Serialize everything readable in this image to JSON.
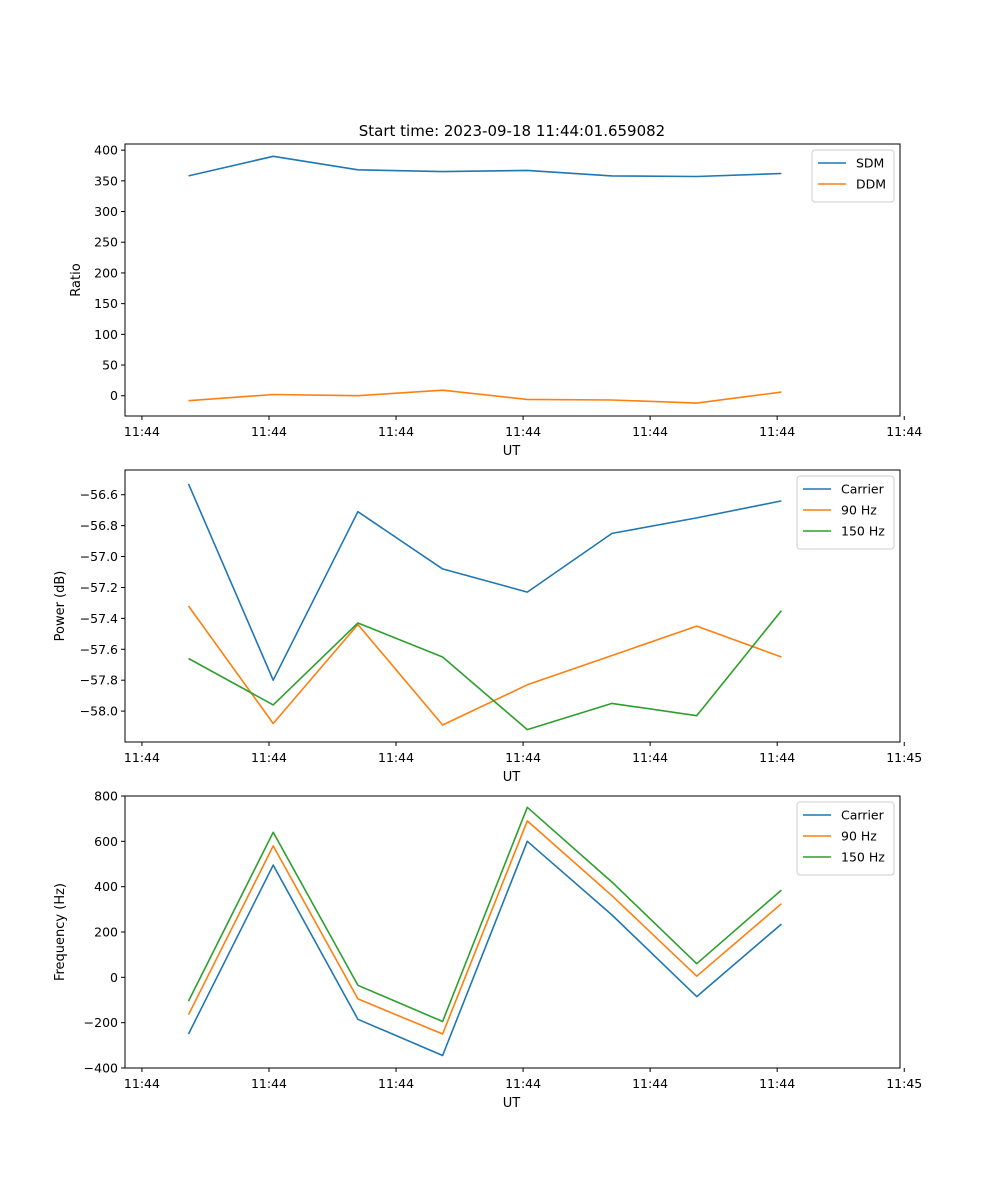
{
  "title": "Start time: 2023-09-18 11:44:01.659082",
  "chart_data": [
    {
      "type": "line",
      "xlabel": "UT",
      "ylabel": "Ratio",
      "x": [
        1,
        2,
        3,
        4,
        5,
        6,
        7,
        8
      ],
      "xlim": [
        0.25,
        9.4
      ],
      "xticks": [
        0.45,
        1.95,
        3.45,
        4.95,
        6.45,
        7.95,
        9.45
      ],
      "xtick_labels": [
        "11:44",
        "11:44",
        "11:44",
        "11:44",
        "11:44",
        "11:44",
        "11:44"
      ],
      "ylim": [
        -33,
        410
      ],
      "yticks": [
        0,
        50,
        100,
        150,
        200,
        250,
        300,
        350,
        400
      ],
      "ytick_labels": [
        "0",
        "50",
        "100",
        "150",
        "200",
        "250",
        "300",
        "350",
        "400"
      ],
      "legend": "top-right",
      "series": [
        {
          "name": "SDM",
          "color": "#1f77b4",
          "values": [
            358,
            390,
            368,
            365,
            367,
            358,
            357,
            362
          ]
        },
        {
          "name": "DDM",
          "color": "#ff7f0e",
          "values": [
            -8,
            2,
            0,
            9,
            -6,
            -7,
            -12,
            6
          ]
        }
      ]
    },
    {
      "type": "line",
      "xlabel": "UT",
      "ylabel": "Power (dB)",
      "x": [
        1,
        2,
        3,
        4,
        5,
        6,
        7,
        8
      ],
      "xlim": [
        0.25,
        9.4
      ],
      "xticks": [
        0.45,
        1.95,
        3.45,
        4.95,
        6.45,
        7.95,
        9.45
      ],
      "xtick_labels": [
        "11:44",
        "11:44",
        "11:44",
        "11:44",
        "11:44",
        "11:44",
        "11:45"
      ],
      "ylim": [
        -58.2,
        -56.44
      ],
      "yticks": [
        -58.0,
        -57.8,
        -57.6,
        -57.4,
        -57.2,
        -57.0,
        -56.8,
        -56.6
      ],
      "ytick_labels": [
        "−58.0",
        "−57.8",
        "−57.6",
        "−57.4",
        "−57.2",
        "−57.0",
        "−56.8",
        "−56.6"
      ],
      "legend": "top-right",
      "series": [
        {
          "name": "Carrier",
          "color": "#1f77b4",
          "values": [
            -56.53,
            -57.8,
            -56.71,
            -57.08,
            -57.23,
            -56.85,
            -56.75,
            -56.64
          ]
        },
        {
          "name": "90 Hz",
          "color": "#ff7f0e",
          "values": [
            -57.32,
            -58.08,
            -57.44,
            -58.09,
            -57.83,
            -57.64,
            -57.45,
            -57.65
          ]
        },
        {
          "name": "150 Hz",
          "color": "#2ca02c",
          "values": [
            -57.66,
            -57.96,
            -57.43,
            -57.65,
            -58.12,
            -57.95,
            -58.03,
            -57.35
          ]
        }
      ]
    },
    {
      "type": "line",
      "xlabel": "UT",
      "ylabel": "Frequency (Hz)",
      "x": [
        1,
        2,
        3,
        4,
        5,
        6,
        7,
        8
      ],
      "xlim": [
        0.25,
        9.4
      ],
      "xticks": [
        0.45,
        1.95,
        3.45,
        4.95,
        6.45,
        7.95,
        9.45
      ],
      "xtick_labels": [
        "11:44",
        "11:44",
        "11:44",
        "11:44",
        "11:44",
        "11:44",
        "11:45"
      ],
      "ylim": [
        -400,
        800
      ],
      "yticks": [
        -400,
        -200,
        0,
        200,
        400,
        600,
        800
      ],
      "ytick_labels": [
        "−400",
        "−200",
        "0",
        "200",
        "400",
        "600",
        "800"
      ],
      "legend": "top-right",
      "series": [
        {
          "name": "Carrier",
          "color": "#1f77b4",
          "values": [
            -250,
            495,
            -185,
            -345,
            600,
            275,
            -85,
            235
          ]
        },
        {
          "name": "90 Hz",
          "color": "#ff7f0e",
          "values": [
            -165,
            580,
            -95,
            -250,
            690,
            360,
            5,
            325
          ]
        },
        {
          "name": "150 Hz",
          "color": "#2ca02c",
          "values": [
            -105,
            640,
            -35,
            -195,
            750,
            420,
            60,
            385
          ]
        }
      ]
    }
  ]
}
